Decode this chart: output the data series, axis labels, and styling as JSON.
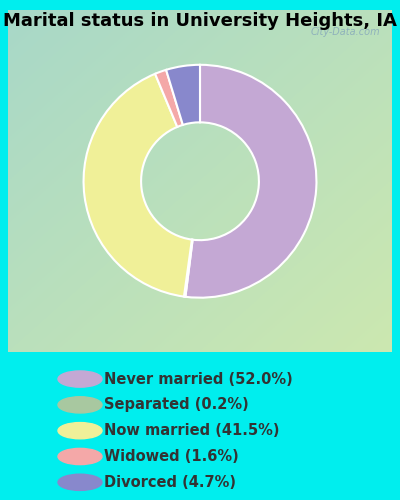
{
  "title": "Marital status in University Heights, IA",
  "slices": [
    {
      "label": "Never married (52.0%)",
      "value": 52.0,
      "color": "#C4A8D4"
    },
    {
      "label": "Separated (0.2%)",
      "value": 0.2,
      "color": "#A8C8A0"
    },
    {
      "label": "Now married (41.5%)",
      "value": 41.5,
      "color": "#F0F098"
    },
    {
      "label": "Widowed (1.6%)",
      "value": 1.6,
      "color": "#F4A8A8"
    },
    {
      "label": "Divorced (4.7%)",
      "value": 4.7,
      "color": "#8888CC"
    }
  ],
  "outer_bg": "#00EEEE",
  "chart_box_color": "#00EEEE",
  "title_fontsize": 13,
  "legend_fontsize": 10.5,
  "watermark": "City-Data.com",
  "start_angle": 90,
  "legend_text_color": "#333333"
}
